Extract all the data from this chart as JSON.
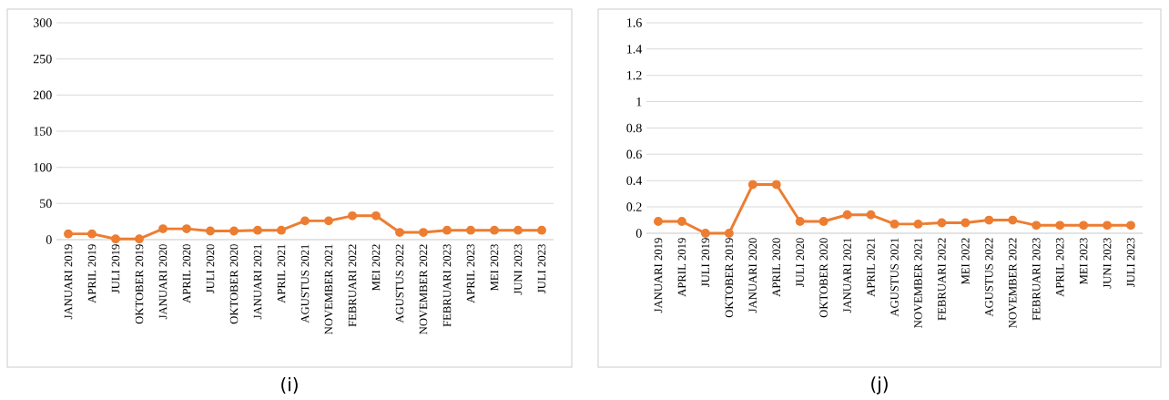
{
  "chart_data": [
    {
      "type": "line",
      "title": "(i)",
      "categories": [
        "JANUARI 2019",
        "APRIL 2019",
        "JULI 2019",
        "OKTOBER 2019",
        "JANUARI 2020",
        "APRIL 2020",
        "JULI 2020",
        "OKTOBER 2020",
        "JANUARI 2021",
        "APRIL 2021",
        "AGUSTUS 2021",
        "NOVEMBER 2021",
        "FEBRUARI 2022",
        "MEI 2022",
        "AGUSTUS 2022",
        "NOVEMBER 2022",
        "FEBRUARI 2023",
        "APRIL 2023",
        "MEI 2023",
        "JUNI 2023",
        "JULI 2023"
      ],
      "values": [
        8,
        8,
        1,
        1,
        15,
        15,
        12,
        12,
        13,
        13,
        26,
        26,
        33,
        33,
        10,
        10,
        13,
        13,
        13,
        13,
        13
      ],
      "color": "#ed7d31",
      "ylim": [
        0,
        300
      ],
      "yticks": [
        0,
        50,
        100,
        150,
        200,
        250,
        300
      ],
      "grid": "y",
      "marker": "circle"
    },
    {
      "type": "line",
      "title": "(j)",
      "categories": [
        "JANUARI 2019",
        "APRIL 2019",
        "JULI 2019",
        "OKTOBER 2019",
        "JANUARI 2020",
        "APRIL 2020",
        "JULI 2020",
        "OKTOBER 2020",
        "JANUARI 2021",
        "APRIL 2021",
        "AGUSTUS 2021",
        "NOVEMBER 2021",
        "FEBRUARI 2022",
        "MEI 2022",
        "AGUSTUS 2022",
        "NOVEMBER 2022",
        "FEBRUARI 2023",
        "APRIL 2023",
        "MEI 2023",
        "JUNI 2023",
        "JULI 2023"
      ],
      "values": [
        0.09,
        0.09,
        0,
        0,
        0.37,
        0.37,
        0.09,
        0.09,
        0.14,
        0.14,
        0.07,
        0.07,
        0.08,
        0.08,
        0.1,
        0.1,
        0.06,
        0.06,
        0.06,
        0.06,
        0.06
      ],
      "color": "#ed7d31",
      "ylim": [
        0,
        1.6
      ],
      "yticks": [
        0,
        0.2,
        0.4,
        0.6,
        0.8,
        1,
        1.2,
        1.4,
        1.6
      ],
      "grid": "y",
      "marker": "circle"
    }
  ]
}
